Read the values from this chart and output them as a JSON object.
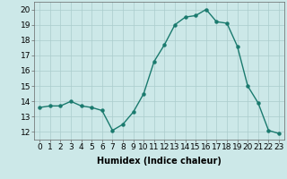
{
  "x": [
    0,
    1,
    2,
    3,
    4,
    5,
    6,
    7,
    8,
    9,
    10,
    11,
    12,
    13,
    14,
    15,
    16,
    17,
    18,
    19,
    20,
    21,
    22,
    23
  ],
  "y": [
    13.6,
    13.7,
    13.7,
    14.0,
    13.7,
    13.6,
    13.4,
    12.1,
    12.5,
    13.3,
    14.5,
    16.6,
    17.7,
    19.0,
    19.5,
    19.6,
    20.0,
    19.2,
    19.1,
    17.6,
    15.0,
    13.9,
    12.1,
    11.9
  ],
  "line_color": "#1a7a6e",
  "marker": "o",
  "marker_size": 2.2,
  "linewidth": 1.0,
  "bg_color": "#cce8e8",
  "grid_color": "#aacccc",
  "xlabel": "Humidex (Indice chaleur)",
  "ylabel": "",
  "xlim": [
    -0.5,
    23.5
  ],
  "ylim": [
    11.5,
    20.5
  ],
  "yticks": [
    12,
    13,
    14,
    15,
    16,
    17,
    18,
    19,
    20
  ],
  "xticks": [
    0,
    1,
    2,
    3,
    4,
    5,
    6,
    7,
    8,
    9,
    10,
    11,
    12,
    13,
    14,
    15,
    16,
    17,
    18,
    19,
    20,
    21,
    22,
    23
  ],
  "xlabel_fontsize": 7,
  "tick_fontsize": 6.5
}
